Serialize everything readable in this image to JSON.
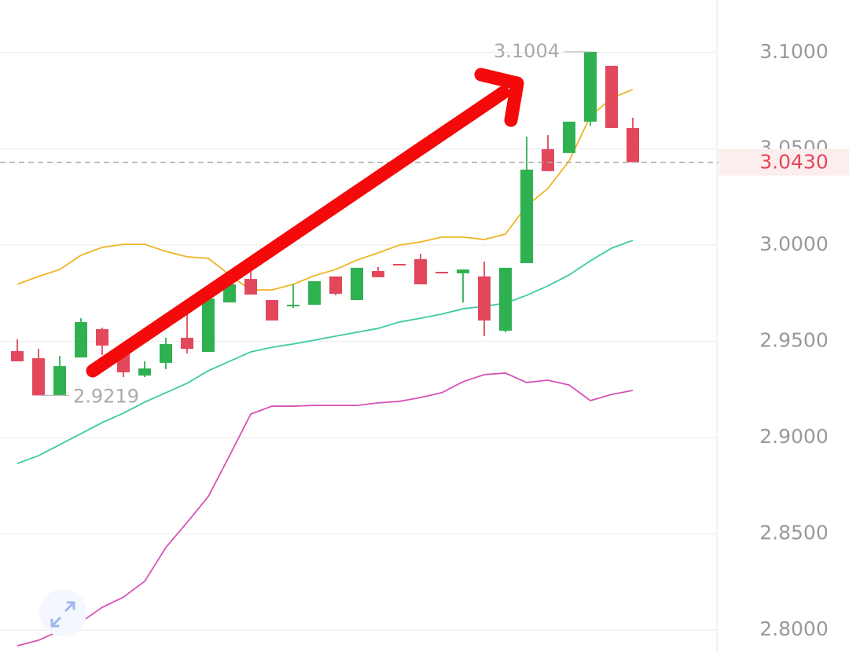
{
  "chart_data": {
    "type": "candlestick",
    "open": [
      2.9449,
      2.9412,
      2.9219,
      2.9416,
      2.9563,
      2.9437,
      2.9322,
      2.9388,
      2.9518,
      2.9445,
      2.9702,
      2.9824,
      2.9714,
      2.9682,
      2.969,
      2.9837,
      2.9714,
      2.9865,
      2.9902,
      2.9927,
      2.9861,
      2.9853,
      2.9837,
      2.9555,
      2.9906,
      3.0498,
      3.0478,
      3.0641,
      3.0931,
      3.0608
    ],
    "high": [
      2.951,
      2.9461,
      2.9424,
      2.962,
      2.9571,
      2.9437,
      2.9396,
      2.9518,
      2.9641,
      2.9763,
      2.9865,
      2.9865,
      2.9714,
      2.9796,
      2.9812,
      2.9837,
      2.9882,
      2.9886,
      2.9902,
      2.9955,
      2.9861,
      2.9873,
      2.9914,
      2.9882,
      3.0563,
      3.0571,
      3.0641,
      3.1004,
      3.0931,
      3.0661
    ],
    "low": [
      2.9396,
      2.9219,
      2.9219,
      2.9416,
      2.9429,
      2.9314,
      2.9314,
      2.9355,
      2.9437,
      2.9445,
      2.9702,
      2.9743,
      2.9608,
      2.9673,
      2.969,
      2.9739,
      2.9714,
      2.9833,
      2.9898,
      2.9796,
      2.9857,
      2.9702,
      2.9527,
      2.9547,
      2.9906,
      3.0384,
      3.0478,
      3.062,
      3.0608,
      3.043
    ],
    "close": [
      2.9396,
      2.9219,
      2.9371,
      2.96,
      2.9478,
      2.9339,
      2.9359,
      2.9486,
      2.9461,
      2.9722,
      2.9796,
      2.9743,
      2.9608,
      2.969,
      2.9812,
      2.9747,
      2.9882,
      2.9833,
      2.9898,
      2.9796,
      2.9857,
      2.9873,
      2.9608,
      2.9882,
      3.0392,
      3.0384,
      3.0641,
      3.1004,
      3.0608,
      3.043
    ],
    "up_color": "#2fb152",
    "down_color": "#e2475b",
    "lines": [
      {
        "color": "#eeb422",
        "values": [
          2.9796,
          2.9837,
          2.9873,
          2.9947,
          2.9988,
          3.0004,
          3.0004,
          2.9967,
          2.9939,
          2.9931,
          2.9845,
          2.9767,
          2.9767,
          2.9796,
          2.9841,
          2.9873,
          2.9922,
          2.9959,
          3.0,
          3.0016,
          3.0041,
          3.0041,
          3.0029,
          3.0057,
          3.0204,
          3.0294,
          3.0437,
          3.0669,
          3.0763,
          3.0808
        ]
      },
      {
        "color": "#3ccaa6",
        "values": [
          2.8865,
          2.8906,
          2.8963,
          2.902,
          2.9078,
          2.9127,
          2.9184,
          2.9233,
          2.9282,
          2.9347,
          2.9396,
          2.9445,
          2.9469,
          2.9486,
          2.9506,
          2.9527,
          2.9547,
          2.9567,
          2.96,
          2.962,
          2.9641,
          2.9669,
          2.9682,
          2.9698,
          2.9739,
          2.9788,
          2.9845,
          2.9918,
          2.9984,
          3.0024
        ]
      },
      {
        "color": "#d653b8",
        "values": [
          2.7918,
          2.7947,
          2.7996,
          2.8041,
          2.8118,
          2.8171,
          2.8253,
          2.8429,
          2.8559,
          2.8694,
          2.8906,
          2.9122,
          2.9163,
          2.9163,
          2.9167,
          2.9167,
          2.9167,
          2.918,
          2.9188,
          2.9208,
          2.9233,
          2.929,
          2.9327,
          2.9335,
          2.9286,
          2.9298,
          2.9273,
          2.9192,
          2.9224,
          2.9245
        ]
      }
    ],
    "ylim": [
      2.7886,
      3.1273
    ],
    "yticks": [
      {
        "value": 3.1,
        "label": "3.1000"
      },
      {
        "value": 3.05,
        "label": "3.0500"
      },
      {
        "value": 3.0,
        "label": "3.0000"
      },
      {
        "value": 2.95,
        "label": "2.9500"
      },
      {
        "value": 2.9,
        "label": "2.9000"
      },
      {
        "value": 2.85,
        "label": "2.8500"
      },
      {
        "value": 2.8,
        "label": "2.8000"
      }
    ],
    "grid": true,
    "max_label": 3.1004,
    "min_label": 2.9219,
    "last_price": {
      "value": 3.043,
      "label": "3.0430"
    }
  }
}
